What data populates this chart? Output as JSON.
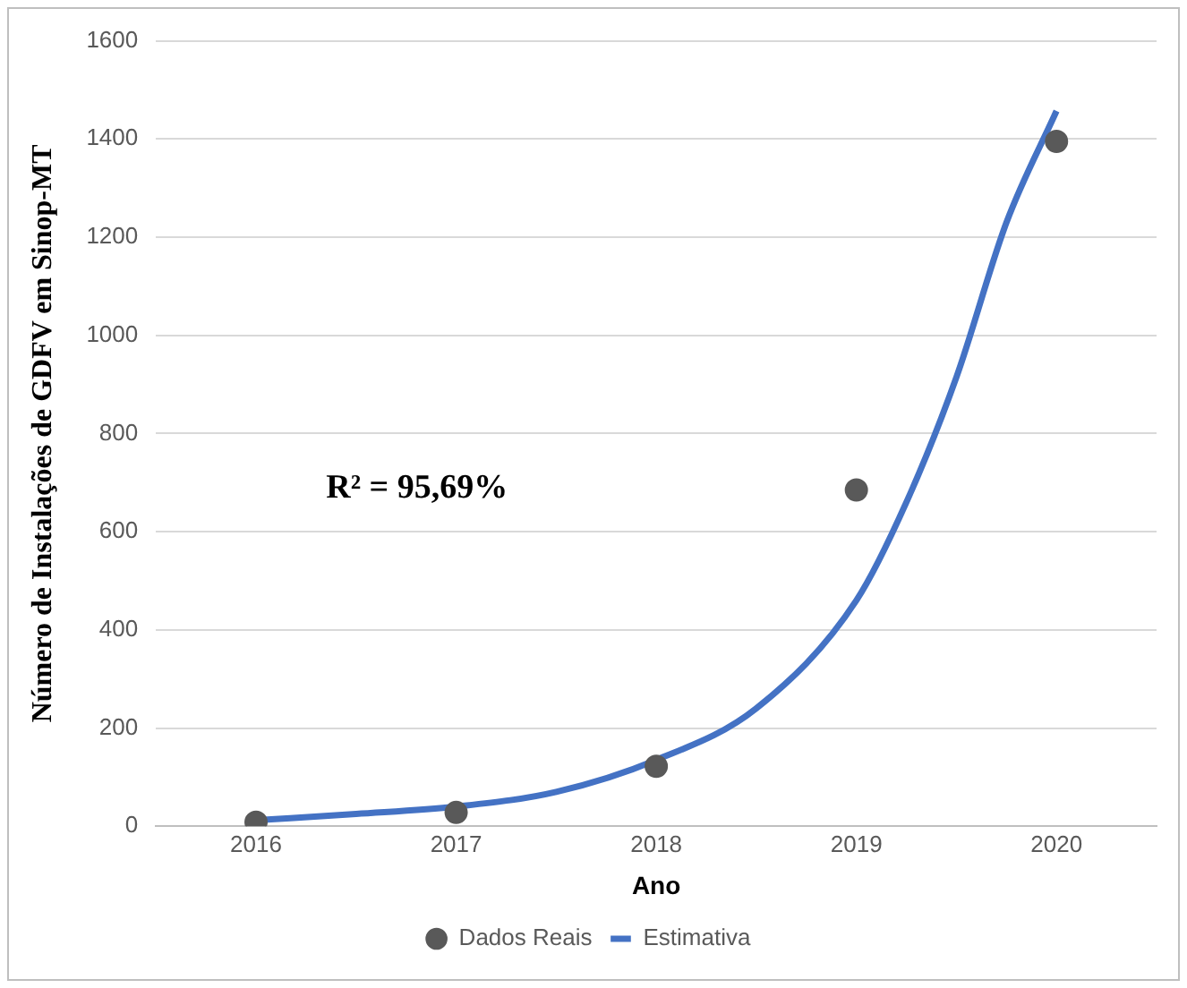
{
  "chart_data": {
    "type": "scatter",
    "xlabel": "Ano",
    "ylabel": "Número de Instalações de GDFV em Sinop-MT",
    "xlim": [
      2015.5,
      2020.5
    ],
    "xticks": [
      2016,
      2017,
      2018,
      2019,
      2020
    ],
    "ylim": [
      0,
      1600
    ],
    "yticks": [
      0,
      200,
      400,
      600,
      800,
      1000,
      1200,
      1400,
      1600
    ],
    "grid": "y",
    "legend": "bottom",
    "annotations": [
      "R² = 95,69%"
    ],
    "series": [
      {
        "name": "Dados Reais",
        "color": "#595959",
        "marker": "circle",
        "x": [
          2016,
          2017,
          2018,
          2019,
          2020
        ],
        "values": [
          8,
          28,
          122,
          685,
          1395
        ]
      },
      {
        "name": "Estimativa",
        "type": "line",
        "color": "#4472c4",
        "marker": "none",
        "x": [
          2016,
          2016.5,
          2017,
          2017.5,
          2018,
          2018.5,
          2019,
          2019.25,
          2019.5,
          2019.75,
          2020
        ],
        "values": [
          12,
          25,
          40,
          70,
          135,
          240,
          460,
          660,
          915,
          1230,
          1457
        ]
      }
    ]
  }
}
